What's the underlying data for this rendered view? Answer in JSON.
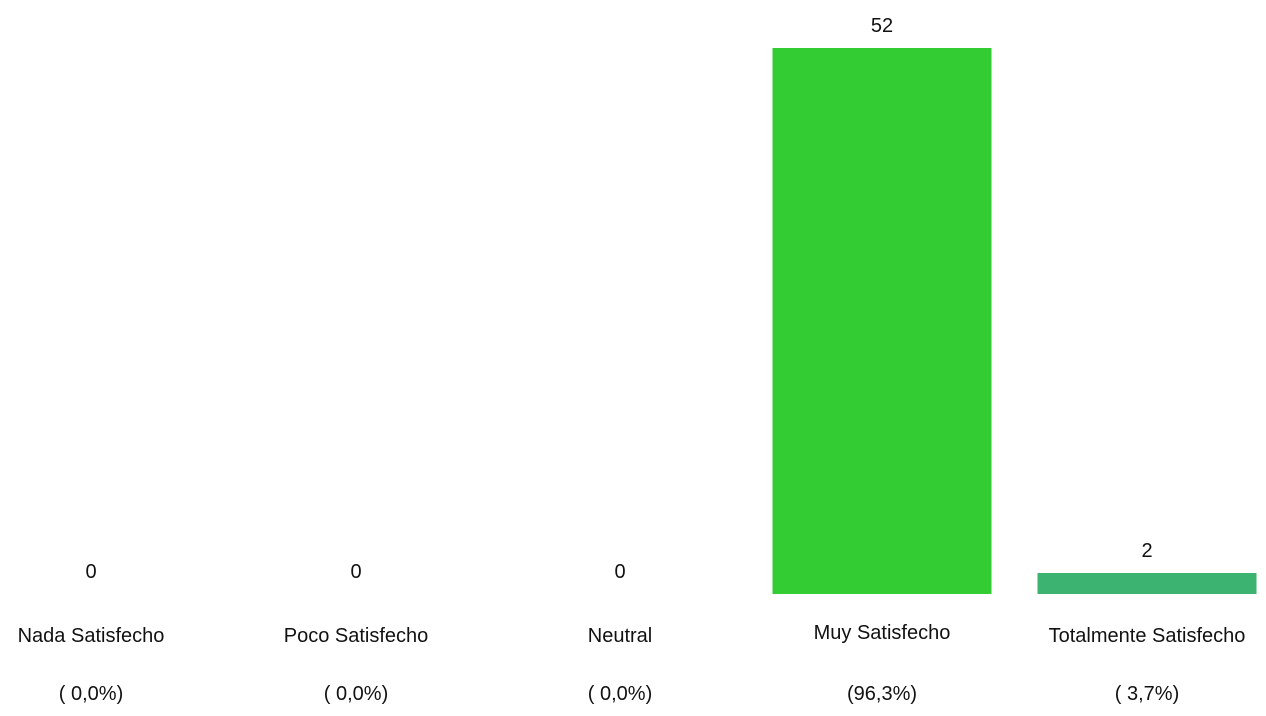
{
  "chart_data": {
    "type": "bar",
    "categories": [
      "Nada Satisfecho",
      "Poco Satisfecho",
      "Neutral",
      "Muy Satisfecho",
      "Totalmente Satisfecho"
    ],
    "values": [
      0,
      0,
      0,
      52,
      2
    ],
    "value_labels": [
      "0",
      "0",
      "0",
      "52",
      "2"
    ],
    "percent_labels": [
      "( 0,0%)",
      "( 0,0%)",
      "( 0,0%)",
      "(96,3%)",
      "( 3,7%)"
    ],
    "colors": [
      "#33cc33",
      "#33cc33",
      "#33cc33",
      "#33cc33",
      "#3cb371"
    ],
    "grid": false,
    "legend": "none",
    "ylim": [
      0,
      52
    ]
  }
}
